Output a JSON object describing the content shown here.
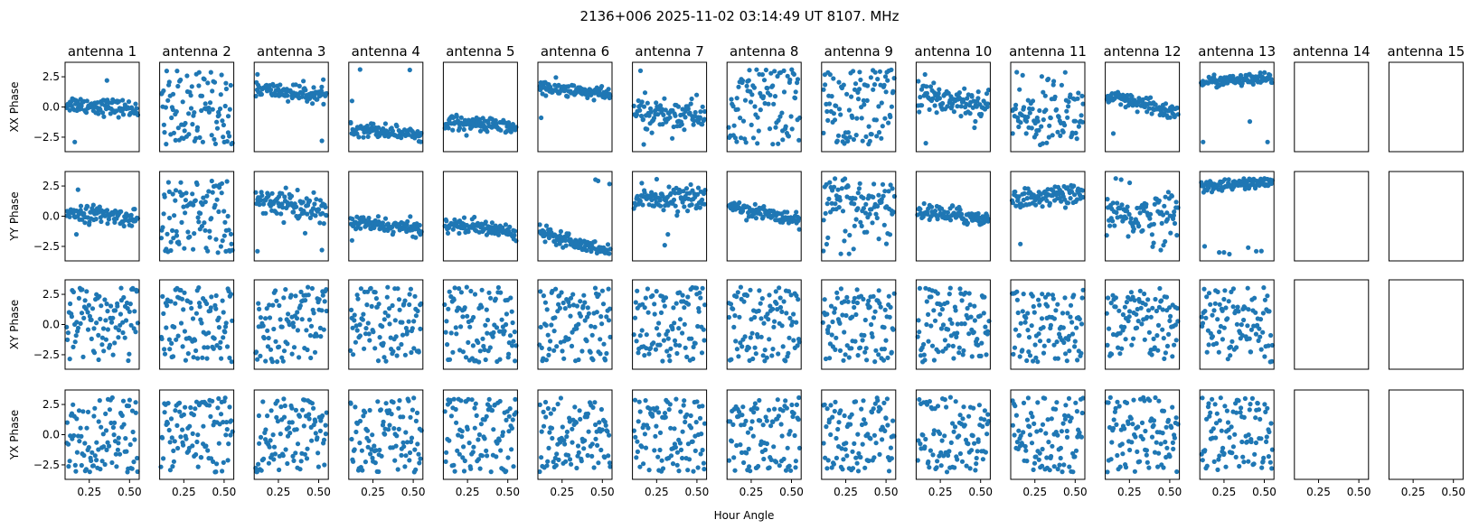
{
  "chart_data": {
    "type": "scatter",
    "suptitle": "2136+006  2025-11-02 03:14:49 UT  8107. MHz",
    "xlabel": "Hour Angle",
    "row_labels": [
      "XX Phase",
      "YY Phase",
      "XY Phase",
      "YX Phase"
    ],
    "antennas": [
      "antenna 1",
      "antenna 2",
      "antenna 3",
      "antenna 4",
      "antenna 5",
      "antenna 6",
      "antenna 7",
      "antenna 8",
      "antenna 9",
      "antenna 10",
      "antenna 11",
      "antenna 12",
      "antenna 13",
      "antenna 14",
      "antenna 15"
    ],
    "xlim": [
      0.1,
      0.56
    ],
    "ylim": [
      -3.7,
      3.7
    ],
    "xticks": [
      0.25,
      0.5
    ],
    "xtick_labels": [
      "0.25",
      "0.50"
    ],
    "yticks": [
      2.5,
      0.0,
      -2.5
    ],
    "ytick_labels": [
      "2.5",
      "0.0",
      "−2.5"
    ],
    "marker_color": "#1f77b4",
    "point_count_per_panel": 100,
    "x_start": 0.11,
    "x_end": 0.55,
    "panels_with_data": 13,
    "panel_models": [
      [
        {
          "kind": "trend",
          "a": 0.3,
          "b": -0.5,
          "noise": 0.35,
          "outliers": [
            [
              0.16,
              -2.9
            ],
            [
              0.36,
              2.2
            ]
          ]
        },
        {
          "kind": "random"
        },
        {
          "kind": "trend",
          "a": 1.5,
          "b": -0.6,
          "noise": 0.35,
          "outliers": [
            [
              0.12,
              2.7
            ],
            [
              0.52,
              -2.8
            ]
          ]
        },
        {
          "kind": "trend",
          "a": -1.7,
          "b": -0.6,
          "noise": 0.3,
          "outliers": [
            [
              0.12,
              0.5
            ],
            [
              0.17,
              3.1
            ]
          ]
        },
        {
          "kind": "trend",
          "a": -1.2,
          "b": -0.5,
          "noise": 0.3,
          "outliers": []
        },
        {
          "kind": "trend",
          "a": 1.6,
          "b": -0.6,
          "noise": 0.3,
          "outliers": [
            [
              0.12,
              -0.9
            ]
          ]
        },
        {
          "kind": "trend",
          "a": -0.5,
          "b": -0.2,
          "noise": 0.7,
          "outliers": [
            [
              0.17,
              -3.1
            ],
            [
              0.15,
              3.0
            ]
          ]
        },
        {
          "kind": "random"
        },
        {
          "kind": "random"
        },
        {
          "kind": "trend",
          "a": 1.0,
          "b": -0.9,
          "noise": 0.7,
          "outliers": [
            [
              0.16,
              -3.0
            ]
          ]
        },
        {
          "kind": "trend",
          "a": -0.9,
          "b": 0.2,
          "noise": 1.4,
          "outliers": []
        },
        {
          "kind": "trend",
          "a": 0.8,
          "b": -1.3,
          "noise": 0.35,
          "outliers": [
            [
              0.15,
              -2.2
            ]
          ]
        },
        {
          "kind": "trend",
          "a": 2.1,
          "b": 0.2,
          "noise": 0.25,
          "outliers": [
            [
              0.12,
              -2.9
            ],
            [
              0.52,
              -2.9
            ],
            [
              0.41,
              -1.2
            ]
          ]
        }
      ],
      [
        {
          "kind": "trend",
          "a": 0.4,
          "b": -0.6,
          "noise": 0.35,
          "outliers": [
            [
              0.18,
              2.2
            ],
            [
              0.17,
              -1.5
            ]
          ]
        },
        {
          "kind": "random"
        },
        {
          "kind": "trend",
          "a": 1.5,
          "b": -1.2,
          "noise": 0.55,
          "outliers": [
            [
              0.12,
              -2.9
            ],
            [
              0.52,
              -2.8
            ]
          ]
        },
        {
          "kind": "trend",
          "a": -0.5,
          "b": -0.6,
          "noise": 0.3,
          "outliers": [
            [
              0.12,
              -2.0
            ]
          ]
        },
        {
          "kind": "trend",
          "a": -0.6,
          "b": -0.7,
          "noise": 0.3,
          "outliers": []
        },
        {
          "kind": "trend",
          "a": -1.2,
          "b": -1.8,
          "noise": 0.3,
          "outliers": []
        },
        {
          "kind": "trend",
          "a": 1.6,
          "b": -0.2,
          "noise": 0.45,
          "outliers": [
            [
              0.3,
              -2.4
            ],
            [
              0.32,
              -1.5
            ]
          ]
        },
        {
          "kind": "trend",
          "a": 0.9,
          "b": -1.3,
          "noise": 0.3,
          "outliers": []
        },
        {
          "kind": "trend",
          "a": 1.0,
          "b": 0.0,
          "noise": 1.3,
          "outliers": []
        },
        {
          "kind": "trend",
          "a": 0.4,
          "b": -0.6,
          "noise": 0.35,
          "outliers": []
        },
        {
          "kind": "trend",
          "a": 1.4,
          "b": 0.5,
          "noise": 0.4,
          "outliers": [
            [
              0.16,
              -2.3
            ]
          ]
        },
        {
          "kind": "trend",
          "a": 0.0,
          "b": 0.0,
          "noise": 1.1,
          "outliers": []
        },
        {
          "kind": "trend",
          "a": 2.5,
          "b": 0.3,
          "noise": 0.25,
          "outliers": [
            [
              0.13,
              -2.5
            ],
            [
              0.22,
              -3.0
            ],
            [
              0.25,
              -3.0
            ],
            [
              0.4,
              -2.6
            ],
            [
              0.45,
              -2.9
            ]
          ]
        }
      ],
      [
        {
          "kind": "random"
        },
        {
          "kind": "random"
        },
        {
          "kind": "random"
        },
        {
          "kind": "random"
        },
        {
          "kind": "random"
        },
        {
          "kind": "random"
        },
        {
          "kind": "random"
        },
        {
          "kind": "random"
        },
        {
          "kind": "random"
        },
        {
          "kind": "random"
        },
        {
          "kind": "random"
        },
        {
          "kind": "random"
        },
        {
          "kind": "random"
        }
      ],
      [
        {
          "kind": "random"
        },
        {
          "kind": "random"
        },
        {
          "kind": "random"
        },
        {
          "kind": "random"
        },
        {
          "kind": "random"
        },
        {
          "kind": "random"
        },
        {
          "kind": "random"
        },
        {
          "kind": "random"
        },
        {
          "kind": "random"
        },
        {
          "kind": "random"
        },
        {
          "kind": "random"
        },
        {
          "kind": "random"
        },
        {
          "kind": "random"
        }
      ]
    ]
  }
}
